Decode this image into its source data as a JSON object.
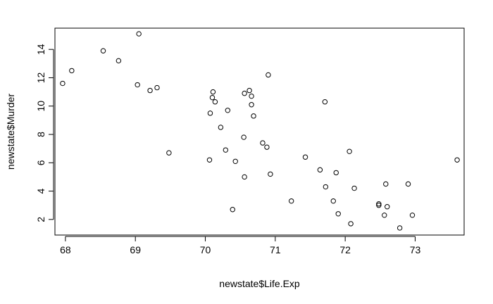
{
  "chart_data": {
    "type": "scatter",
    "title": "",
    "xlabel": "newstate$Life.Exp",
    "ylabel": "newstate$Murder",
    "xlim": [
      67.85,
      73.7
    ],
    "ylim": [
      0.9,
      15.5
    ],
    "x_ticks": [
      68,
      69,
      70,
      71,
      72,
      73
    ],
    "y_ticks": [
      2,
      4,
      6,
      8,
      10,
      12,
      14
    ],
    "grid": false,
    "legend": "none",
    "colors": {
      "point_stroke": "#000000",
      "axis": "#000000",
      "background": "#ffffff"
    },
    "x": [
      67.96,
      68.09,
      68.54,
      68.76,
      69.05,
      69.03,
      69.21,
      69.31,
      69.48,
      70.06,
      70.07,
      70.1,
      70.11,
      70.14,
      70.22,
      70.29,
      70.32,
      70.39,
      70.43,
      70.55,
      70.56,
      70.56,
      70.63,
      70.66,
      70.66,
      70.69,
      70.82,
      70.88,
      70.9,
      70.93,
      71.23,
      71.43,
      71.64,
      71.71,
      71.72,
      71.83,
      71.87,
      71.9,
      72.06,
      72.08,
      72.13,
      72.48,
      72.48,
      72.56,
      72.58,
      72.6,
      72.78,
      72.9,
      72.96,
      73.6
    ],
    "y": [
      11.6,
      12.5,
      13.9,
      13.2,
      15.1,
      11.5,
      11.1,
      11.3,
      6.7,
      6.2,
      9.5,
      10.6,
      11.0,
      10.3,
      8.5,
      6.9,
      9.7,
      2.7,
      6.1,
      7.8,
      10.9,
      5.0,
      11.1,
      10.7,
      10.1,
      9.3,
      7.4,
      7.1,
      12.2,
      5.2,
      3.3,
      6.4,
      5.5,
      10.3,
      4.3,
      3.3,
      5.3,
      2.4,
      6.8,
      1.7,
      4.2,
      3.0,
      3.1,
      2.3,
      4.5,
      2.9,
      1.4,
      4.5,
      2.3,
      6.2
    ]
  }
}
